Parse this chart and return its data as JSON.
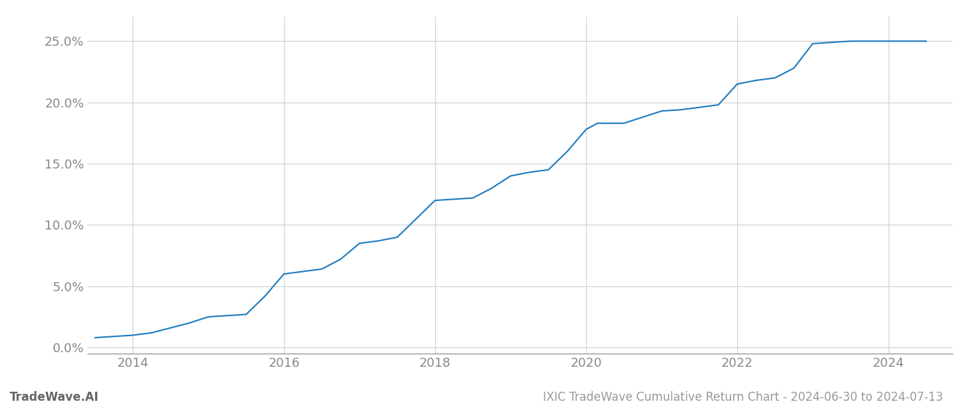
{
  "title": "IXIC TradeWave Cumulative Return Chart - 2024-06-30 to 2024-07-13",
  "watermark": "TradeWave.AI",
  "line_color": "#1f7bbf",
  "background_color": "#ffffff",
  "grid_color": "#d0d0d0",
  "x_data": [
    2013.5,
    2013.75,
    2014.0,
    2014.25,
    2014.5,
    2014.75,
    2015.0,
    2015.25,
    2015.5,
    2015.75,
    2016.0,
    2016.25,
    2016.5,
    2016.75,
    2017.0,
    2017.25,
    2017.5,
    2017.75,
    2018.0,
    2018.25,
    2018.5,
    2018.75,
    2019.0,
    2019.25,
    2019.5,
    2019.75,
    2020.0,
    2020.15,
    2020.3,
    2020.5,
    2020.75,
    2021.0,
    2021.25,
    2021.5,
    2021.75,
    2022.0,
    2022.25,
    2022.5,
    2022.75,
    2023.0,
    2023.25,
    2023.5,
    2023.75,
    2024.0,
    2024.25,
    2024.5
  ],
  "y_data": [
    0.008,
    0.009,
    0.01,
    0.012,
    0.016,
    0.02,
    0.025,
    0.026,
    0.027,
    0.042,
    0.06,
    0.062,
    0.064,
    0.072,
    0.085,
    0.087,
    0.09,
    0.105,
    0.12,
    0.121,
    0.122,
    0.13,
    0.14,
    0.143,
    0.145,
    0.16,
    0.178,
    0.183,
    0.183,
    0.183,
    0.188,
    0.193,
    0.194,
    0.196,
    0.198,
    0.215,
    0.218,
    0.22,
    0.228,
    0.248,
    0.249,
    0.25,
    0.25,
    0.25,
    0.25,
    0.25
  ],
  "ylim": [
    -0.005,
    0.27
  ],
  "xlim": [
    2013.4,
    2024.85
  ],
  "yticks": [
    0.0,
    0.05,
    0.1,
    0.15,
    0.2,
    0.25
  ],
  "ytick_labels": [
    "0.0%",
    "5.0%",
    "10.0%",
    "15.0%",
    "20.0%",
    "25.0%"
  ],
  "xtick_years": [
    2014,
    2016,
    2018,
    2020,
    2022,
    2024
  ],
  "line_width": 1.5,
  "title_fontsize": 12,
  "tick_fontsize": 13,
  "watermark_fontsize": 12
}
